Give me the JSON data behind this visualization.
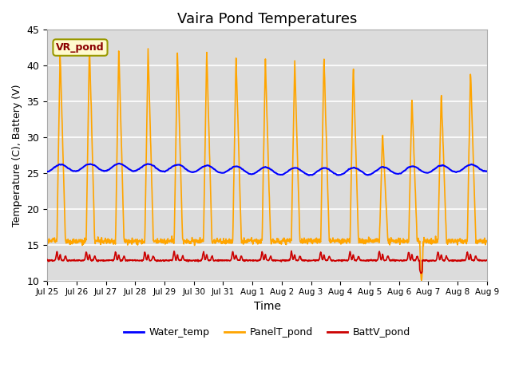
{
  "title": "Vaira Pond Temperatures",
  "xlabel": "Time",
  "ylabel": "Temperature (C), Battery (V)",
  "ylim": [
    10,
    45
  ],
  "yticks": [
    10,
    15,
    20,
    25,
    30,
    35,
    40,
    45
  ],
  "annotation_text": "VR_pond",
  "water_color": "#0000FF",
  "panel_color": "#FFA500",
  "batt_color": "#CC0000",
  "bg_color": "#DCDCDC",
  "legend_labels": [
    "Water_temp",
    "PanelT_pond",
    "BattV_pond"
  ],
  "num_days": 15,
  "n_points_per_day": 96,
  "panel_peaks": [
    42,
    43,
    42.5,
    42.5,
    42,
    42,
    41.5,
    41,
    41,
    41.5,
    40,
    30.5,
    35.5,
    36.5,
    39.5
  ],
  "panel_night_min": 15.5,
  "tick_labels": [
    "Jul 25",
    "Jul 26",
    "Jul 27",
    "Jul 28",
    "Jul 29",
    "Jul 30",
    "Jul 31",
    "Aug 1",
    "Aug 2",
    "Aug 3",
    "Aug 4",
    "Aug 5",
    "Aug 6",
    "Aug 7",
    "Aug 8",
    "Aug 9"
  ]
}
